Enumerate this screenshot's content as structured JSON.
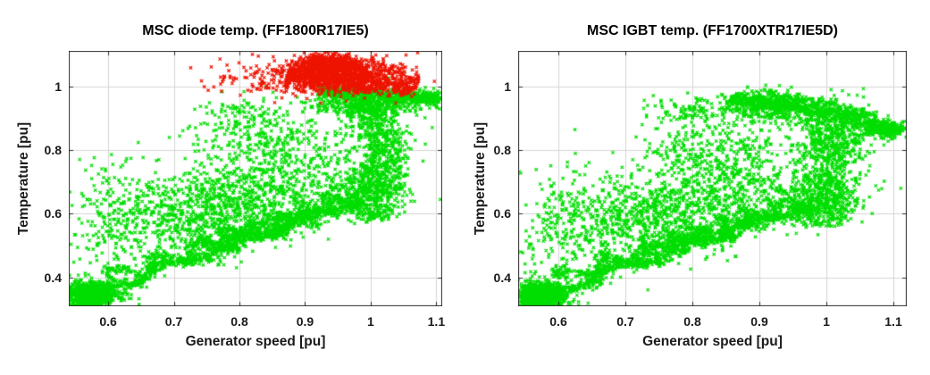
{
  "figure": {
    "background": "#ffffff",
    "text_color": "#1a1a1a",
    "axis_color": "#2b2b2b",
    "grid_color": "#d4d4d4"
  },
  "chart_data": [
    {
      "type": "scatter",
      "title": "MSC diode temp. (FF1800R17IE5)",
      "xlabel": "Generator speed [pu]",
      "ylabel": "Temperature [pu]",
      "xlim": [
        0.54,
        1.109
      ],
      "ylim": [
        0.309,
        1.112
      ],
      "xticks": [
        0.6,
        0.7,
        0.8,
        0.9,
        1,
        1.1
      ],
      "yticks": [
        0.4,
        0.6,
        0.8,
        1
      ],
      "grid": true,
      "legend": null,
      "marker": "x",
      "series": [
        {
          "name": "green",
          "color": "#00dd00",
          "clusters": [
            {
              "kind": "gauss",
              "cx": 0.575,
              "cy": 0.345,
              "sx": 0.016,
              "sy": 0.017,
              "n": 900
            },
            {
              "kind": "gauss",
              "cx": 0.578,
              "cy": 0.35,
              "sx": 0.028,
              "sy": 0.026,
              "n": 260
            },
            {
              "kind": "band",
              "x1": 0.552,
              "y1": 0.332,
              "x2": 0.985,
              "y2": 0.648,
              "w": 0.008,
              "wave": 0.012,
              "cycles": 4,
              "n": 720
            },
            {
              "kind": "band",
              "x1": 0.6,
              "y1": 0.4,
              "x2": 0.92,
              "y2": 0.6,
              "w": 0.012,
              "wave": 0.016,
              "cycles": 5,
              "n": 460
            },
            {
              "kind": "band",
              "x1": 0.745,
              "y1": 0.495,
              "x2": 0.975,
              "y2": 0.655,
              "w": 0.013,
              "wave": 0.018,
              "cycles": 6,
              "n": 520
            },
            {
              "kind": "gauss",
              "cx": 0.78,
              "cy": 0.63,
              "sx": 0.1,
              "sy": 0.072,
              "tilt": 0.45,
              "n": 1300
            },
            {
              "kind": "gauss",
              "cx": 0.615,
              "cy": 0.63,
              "sx": 0.035,
              "sy": 0.08,
              "n": 140
            },
            {
              "kind": "gauss",
              "cx": 0.85,
              "cy": 0.82,
              "sx": 0.055,
              "sy": 0.055,
              "n": 260
            },
            {
              "kind": "gauss",
              "cx": 0.8,
              "cy": 0.91,
              "sx": 0.035,
              "sy": 0.035,
              "n": 90
            },
            {
              "kind": "vband",
              "cx": 1.005,
              "sx": 0.02,
              "y1": 0.58,
              "y2": 0.97,
              "n": 620
            },
            {
              "kind": "gauss",
              "cx": 0.99,
              "cy": 0.66,
              "sx": 0.035,
              "sy": 0.035,
              "n": 300
            },
            {
              "kind": "band",
              "x1": 0.92,
              "y1": 0.988,
              "x2": 1.105,
              "y2": 0.962,
              "w": 0.011,
              "n": 520
            },
            {
              "kind": "gauss",
              "cx": 0.99,
              "cy": 0.945,
              "sx": 0.04,
              "sy": 0.022,
              "n": 360
            },
            {
              "kind": "gauss",
              "cx": 1.03,
              "cy": 0.8,
              "sx": 0.018,
              "sy": 0.07,
              "n": 230
            },
            {
              "kind": "gauss",
              "cx": 1.09,
              "cy": 0.965,
              "sx": 0.012,
              "sy": 0.008,
              "n": 110
            }
          ]
        },
        {
          "name": "red",
          "color": "#ee1200",
          "clusters": [
            {
              "kind": "gauss",
              "cx": 0.955,
              "cy": 1.042,
              "sx": 0.045,
              "sy": 0.024,
              "n": 900
            },
            {
              "kind": "gauss",
              "cx": 0.932,
              "cy": 1.076,
              "sx": 0.026,
              "sy": 0.012,
              "n": 340
            },
            {
              "kind": "band",
              "x1": 0.872,
              "y1": 1.028,
              "x2": 1.07,
              "y2": 0.996,
              "w": 0.018,
              "n": 620
            },
            {
              "kind": "gauss",
              "cx": 0.84,
              "cy": 1.03,
              "sx": 0.04,
              "sy": 0.03,
              "n": 110
            }
          ]
        }
      ]
    },
    {
      "type": "scatter",
      "title": "MSC IGBT temp. (FF1700XTR17IE5D)",
      "xlabel": "Generator speed [pu]",
      "ylabel": "Temperature [pu]",
      "xlim": [
        0.54,
        1.12
      ],
      "ylim": [
        0.309,
        1.112
      ],
      "xticks": [
        0.6,
        0.7,
        0.8,
        0.9,
        1,
        1.1
      ],
      "yticks": [
        0.4,
        0.6,
        0.8,
        1
      ],
      "grid": true,
      "legend": null,
      "marker": "x",
      "series": [
        {
          "name": "green",
          "color": "#00dd00",
          "clusters": [
            {
              "kind": "gauss",
              "cx": 0.575,
              "cy": 0.34,
              "sx": 0.016,
              "sy": 0.017,
              "n": 900
            },
            {
              "kind": "gauss",
              "cx": 0.578,
              "cy": 0.346,
              "sx": 0.028,
              "sy": 0.026,
              "n": 260
            },
            {
              "kind": "band",
              "x1": 0.552,
              "y1": 0.328,
              "x2": 0.975,
              "y2": 0.628,
              "w": 0.008,
              "wave": 0.012,
              "cycles": 4,
              "n": 720
            },
            {
              "kind": "band",
              "x1": 0.6,
              "y1": 0.396,
              "x2": 0.91,
              "y2": 0.592,
              "w": 0.012,
              "wave": 0.016,
              "cycles": 5,
              "n": 460
            },
            {
              "kind": "band",
              "x1": 0.735,
              "y1": 0.48,
              "x2": 0.96,
              "y2": 0.64,
              "w": 0.013,
              "wave": 0.018,
              "cycles": 6,
              "n": 520
            },
            {
              "kind": "gauss",
              "cx": 0.77,
              "cy": 0.612,
              "sx": 0.1,
              "sy": 0.072,
              "tilt": 0.45,
              "n": 1300
            },
            {
              "kind": "gauss",
              "cx": 0.615,
              "cy": 0.605,
              "sx": 0.035,
              "sy": 0.075,
              "n": 140
            },
            {
              "kind": "gauss",
              "cx": 0.84,
              "cy": 0.8,
              "sx": 0.055,
              "sy": 0.05,
              "n": 260
            },
            {
              "kind": "gauss",
              "cx": 0.795,
              "cy": 0.925,
              "sx": 0.032,
              "sy": 0.03,
              "n": 110
            },
            {
              "kind": "vband",
              "cx": 1.0,
              "sx": 0.022,
              "y1": 0.56,
              "y2": 0.93,
              "n": 620
            },
            {
              "kind": "gauss",
              "cx": 0.985,
              "cy": 0.645,
              "sx": 0.035,
              "sy": 0.035,
              "n": 300
            },
            {
              "kind": "band",
              "x1": 0.855,
              "y1": 0.96,
              "x2": 1.112,
              "y2": 0.856,
              "w": 0.014,
              "bow": 0.02,
              "n": 820
            },
            {
              "kind": "gauss",
              "cx": 0.925,
              "cy": 0.935,
              "sx": 0.04,
              "sy": 0.026,
              "n": 340
            },
            {
              "kind": "gauss",
              "cx": 1.02,
              "cy": 0.82,
              "sx": 0.02,
              "sy": 0.06,
              "n": 250
            },
            {
              "kind": "gauss",
              "cx": 1.085,
              "cy": 0.865,
              "sx": 0.015,
              "sy": 0.01,
              "n": 150
            }
          ]
        }
      ]
    }
  ]
}
